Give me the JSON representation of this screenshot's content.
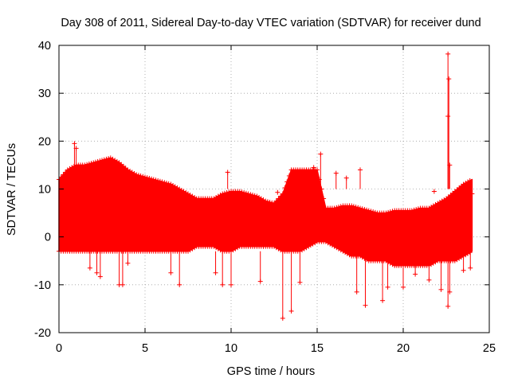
{
  "chart_data": {
    "type": "scatter",
    "title": "Day 308 of 2011, Sidereal Day-to-day VTEC variation (SDTVAR) for receiver dund",
    "xlabel": "GPS time / hours",
    "ylabel": "SDTVAR / TECUs",
    "xlim": [
      0,
      25
    ],
    "ylim": [
      -20,
      40
    ],
    "xticks": [
      0,
      5,
      10,
      15,
      20,
      25
    ],
    "yticks": [
      -20,
      -10,
      0,
      10,
      20,
      30,
      40
    ],
    "grid": true,
    "marker": "+",
    "color": "#ff0000",
    "series": [
      {
        "name": "SDTVAR",
        "envelope": {
          "x": [
            0,
            0.5,
            1,
            1.5,
            2,
            2.5,
            3,
            3.5,
            4,
            4.5,
            5,
            5.5,
            6,
            6.5,
            7,
            7.5,
            8,
            8.5,
            9,
            9.5,
            10,
            10.5,
            11,
            11.5,
            12,
            12.5,
            13,
            13.5,
            14,
            14.5,
            15,
            15.5,
            16,
            16.5,
            17,
            17.5,
            18,
            18.5,
            19,
            19.5,
            20,
            20.5,
            21,
            21.5,
            22,
            22.5,
            23,
            23.5,
            24
          ],
          "upper": [
            12,
            14,
            15,
            15,
            15.5,
            16,
            16.5,
            15.5,
            14,
            13,
            12.5,
            12,
            11.5,
            11,
            10,
            9,
            8,
            8,
            8,
            9,
            9.5,
            9.5,
            9,
            8.5,
            7.5,
            7,
            9,
            14,
            14,
            14,
            14,
            6,
            6,
            6.5,
            6.5,
            6,
            5.5,
            5,
            5,
            5.5,
            5.5,
            5.5,
            6,
            6,
            7,
            8,
            9.5,
            11,
            12
          ],
          "lower": [
            -3,
            -3,
            -3,
            -3,
            -3,
            -3,
            -3,
            -3,
            -3,
            -3,
            -3,
            -3,
            -3,
            -3,
            -3,
            -3,
            -2,
            -2,
            -2,
            -3,
            -3,
            -2,
            -2,
            -2,
            -2,
            -2,
            -3,
            -3,
            -3,
            -2,
            -1,
            -1,
            -2,
            -3,
            -4,
            -4,
            -5,
            -5,
            -5,
            -6,
            -6,
            -6,
            -6,
            -6,
            -5,
            -5,
            -5,
            -4,
            -3
          ]
        },
        "outliers": [
          {
            "x": 0.9,
            "y": 19.5
          },
          {
            "x": 1.0,
            "y": 18.5
          },
          {
            "x": 1.8,
            "y": -6.5
          },
          {
            "x": 2.2,
            "y": -7.5
          },
          {
            "x": 2.4,
            "y": -8.3
          },
          {
            "x": 3.5,
            "y": -10
          },
          {
            "x": 3.7,
            "y": -10
          },
          {
            "x": 4.0,
            "y": -5.5
          },
          {
            "x": 6.5,
            "y": -7.5
          },
          {
            "x": 7.0,
            "y": -10
          },
          {
            "x": 9.1,
            "y": -7.5
          },
          {
            "x": 9.5,
            "y": -10
          },
          {
            "x": 10.0,
            "y": -10
          },
          {
            "x": 9.8,
            "y": 13.5
          },
          {
            "x": 11.7,
            "y": -9.3
          },
          {
            "x": 12.7,
            "y": 9.3
          },
          {
            "x": 13.0,
            "y": -17
          },
          {
            "x": 13.5,
            "y": -15.5
          },
          {
            "x": 14.0,
            "y": -9.5
          },
          {
            "x": 14.8,
            "y": 14.5
          },
          {
            "x": 15.2,
            "y": 17.3
          },
          {
            "x": 16.1,
            "y": 13.3
          },
          {
            "x": 16.7,
            "y": 12.3
          },
          {
            "x": 17.5,
            "y": 14
          },
          {
            "x": 17.3,
            "y": -11.5
          },
          {
            "x": 17.8,
            "y": -14.3
          },
          {
            "x": 18.8,
            "y": -13.3
          },
          {
            "x": 19.1,
            "y": -10.5
          },
          {
            "x": 20.0,
            "y": -10.5
          },
          {
            "x": 20.7,
            "y": -7.8
          },
          {
            "x": 21.5,
            "y": -9
          },
          {
            "x": 21.8,
            "y": 9.5
          },
          {
            "x": 22.2,
            "y": -11
          },
          {
            "x": 22.6,
            "y": 38.2
          },
          {
            "x": 22.65,
            "y": 33
          },
          {
            "x": 22.6,
            "y": 25.2
          },
          {
            "x": 22.7,
            "y": 15
          },
          {
            "x": 22.6,
            "y": -14.5
          },
          {
            "x": 22.7,
            "y": -11.5
          },
          {
            "x": 23.5,
            "y": -7
          },
          {
            "x": 23.9,
            "y": -6.5
          },
          {
            "x": 24.0,
            "y": 9
          }
        ]
      }
    ]
  }
}
